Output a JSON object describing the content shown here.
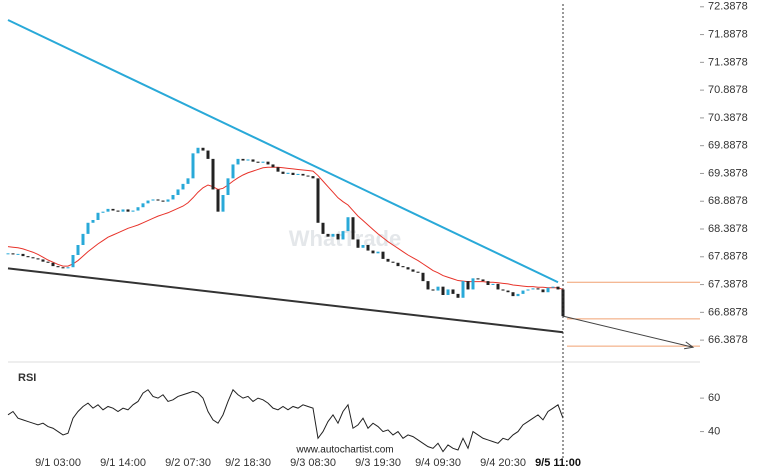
{
  "chart_data": [
    {
      "type": "candlestick",
      "watermark": "WhatTrade",
      "close": [
        67.95,
        67.93,
        67.94,
        67.9,
        67.88,
        67.86,
        67.84,
        67.8,
        67.78,
        67.72,
        67.7,
        67.68,
        67.7,
        67.92,
        68.1,
        68.3,
        68.5,
        68.55,
        68.68,
        68.7,
        68.75,
        68.72,
        68.7,
        68.74,
        68.7,
        68.72,
        68.78,
        68.85,
        68.9,
        68.92,
        68.9,
        68.88,
        68.92,
        69.0,
        69.1,
        69.2,
        69.3,
        69.75,
        69.85,
        69.8,
        69.65,
        69.1,
        68.7,
        69.0,
        69.3,
        69.55,
        69.65,
        69.62,
        69.64,
        69.6,
        69.58,
        69.6,
        69.55,
        69.5,
        69.42,
        69.38,
        69.4,
        69.36,
        69.38,
        69.35,
        69.34,
        69.3,
        68.5,
        68.3,
        68.25,
        68.3,
        68.2,
        68.35,
        68.6,
        68.2,
        68.05,
        68.1,
        68.0,
        67.95,
        67.98,
        67.85,
        67.8,
        67.78,
        67.72,
        67.7,
        67.66,
        67.62,
        67.6,
        67.45,
        67.3,
        67.28,
        67.35,
        67.2,
        67.3,
        67.22,
        67.15,
        67.45,
        67.3,
        67.5,
        67.48,
        67.45,
        67.38,
        67.4,
        67.3,
        67.28,
        67.25,
        67.18,
        67.22,
        67.28,
        67.3,
        67.32,
        67.3,
        67.25,
        67.33,
        67.35,
        67.3,
        66.82
      ],
      "up_color": "#29a9d8",
      "down_color": "#222222",
      "moving_average": [
        68.07,
        68.06,
        68.05,
        68.03,
        68.0,
        67.97,
        67.93,
        67.88,
        67.83,
        67.79,
        67.75,
        67.72,
        67.72,
        67.76,
        67.82,
        67.9,
        67.98,
        68.05,
        68.12,
        68.18,
        68.24,
        68.28,
        68.32,
        68.36,
        68.4,
        68.43,
        68.46,
        68.5,
        68.54,
        68.58,
        68.62,
        68.65,
        68.68,
        68.72,
        68.76,
        68.8,
        68.86,
        68.95,
        69.05,
        69.13,
        69.18,
        69.15,
        69.1,
        69.12,
        69.18,
        69.25,
        69.31,
        69.36,
        69.4,
        69.43,
        69.46,
        69.49,
        69.5,
        69.5,
        69.5,
        69.49,
        69.48,
        69.47,
        69.46,
        69.45,
        69.44,
        69.43,
        69.35,
        69.25,
        69.15,
        69.05,
        68.95,
        68.88,
        68.82,
        68.72,
        68.62,
        68.54,
        68.46,
        68.38,
        68.3,
        68.23,
        68.16,
        68.1,
        68.04,
        67.98,
        67.92,
        67.87,
        67.82,
        67.76,
        67.7,
        67.64,
        67.6,
        67.55,
        67.52,
        67.49,
        67.46,
        67.45,
        67.44,
        67.44,
        67.44,
        67.44,
        67.43,
        67.43,
        67.42,
        67.41,
        67.4,
        67.38,
        67.37,
        67.36,
        67.35,
        67.35,
        67.34,
        67.34,
        67.33,
        67.33,
        67.33,
        67.3
      ],
      "ma_color": "#e8332a",
      "trendlines": [
        {
          "x": [
            0,
            110
          ],
          "y": [
            72.15,
            67.43
          ],
          "color": "#29a9d8"
        },
        {
          "x": [
            0,
            111
          ],
          "y": [
            67.68,
            66.53
          ],
          "color": "#333333"
        }
      ],
      "levels": [
        67.43,
        66.77,
        66.28
      ],
      "level_color": "#f0a070",
      "projection": {
        "x": [
          111,
          137
        ],
        "y": [
          66.82,
          66.26
        ]
      },
      "ylim": [
        66.03,
        72.51
      ],
      "yticks": [
        66.3878,
        66.8878,
        67.3878,
        67.8878,
        68.3878,
        68.8878,
        69.3878,
        69.8878,
        70.3878,
        70.8878,
        71.3878,
        71.8878,
        72.3878
      ]
    },
    {
      "type": "line",
      "title": "RSI",
      "color": "#222222",
      "values": [
        50,
        52,
        48,
        47,
        46,
        45,
        44,
        45,
        43,
        42,
        40,
        38,
        39,
        48,
        52,
        55,
        57,
        54,
        56,
        53,
        55,
        54,
        52,
        54,
        53,
        56,
        58,
        63,
        65,
        61,
        60,
        62,
        58,
        59,
        61,
        62,
        63,
        64,
        63,
        60,
        52,
        47,
        45,
        50,
        58,
        65,
        62,
        60,
        61,
        58,
        60,
        59,
        57,
        54,
        53,
        55,
        53,
        55,
        54,
        56,
        55,
        54,
        36,
        40,
        46,
        50,
        45,
        52,
        56,
        42,
        44,
        48,
        42,
        45,
        43,
        40,
        41,
        38,
        40,
        36,
        38,
        37,
        35,
        33,
        31,
        30,
        33,
        28,
        32,
        30,
        29,
        36,
        30,
        40,
        38,
        36,
        35,
        34,
        33,
        36,
        35,
        38,
        40,
        44,
        46,
        48,
        50,
        47,
        52,
        54,
        56,
        48
      ],
      "ylim": [
        26,
        78
      ],
      "yticks": [
        40,
        60
      ],
      "categories": [
        null,
        null,
        null,
        null,
        null,
        null,
        null,
        null,
        null,
        null,
        "9/1 03:00",
        null,
        null,
        null,
        null,
        null,
        null,
        null,
        null,
        null,
        null,
        null,
        null,
        "9/1 14:00",
        null,
        null,
        null,
        null,
        null,
        null,
        null,
        null,
        null,
        null,
        null,
        null,
        "9/2 07:30",
        null,
        null,
        null,
        null,
        null,
        null,
        null,
        null,
        null,
        null,
        null,
        "9/2 18:30",
        null,
        null,
        null,
        null,
        null,
        null,
        null,
        null,
        null,
        null,
        null,
        null,
        "9/3 08:30",
        null,
        null,
        null,
        null,
        null,
        null,
        null,
        null,
        null,
        null,
        null,
        null,
        "9/3 19:30",
        null,
        null,
        null,
        null,
        null,
        null,
        null,
        null,
        null,
        null,
        null,
        "9/4 09:30",
        null,
        null,
        null,
        null,
        null,
        null,
        null,
        null,
        null,
        null,
        null,
        null,
        "9/4 20:30",
        null,
        null,
        null,
        null,
        null,
        null,
        null,
        null,
        null,
        null,
        "9/5 11:00",
        null
      ]
    }
  ],
  "footer": "www.autochartist.com"
}
